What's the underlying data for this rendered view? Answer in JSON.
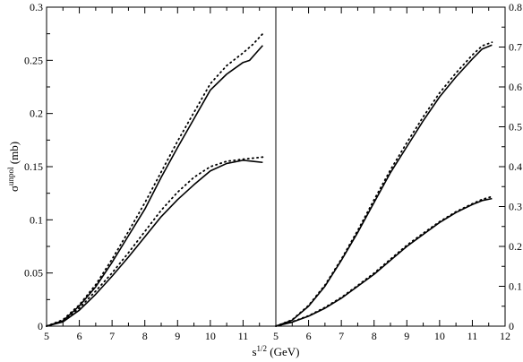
{
  "chart_data": [
    {
      "type": "line",
      "panel": "left",
      "xlabel": "s^{1/2} (GeV)",
      "ylabel": "σ^{unpol} (mb)",
      "xlim": [
        5,
        12
      ],
      "ylim": [
        0,
        0.3
      ],
      "x_ticks": [
        "5",
        "6",
        "7",
        "8",
        "9",
        "10",
        "11"
      ],
      "y_ticks": [
        "0",
        "0.05",
        "0.1",
        "0.15",
        "0.2",
        "0.25",
        "0.3"
      ],
      "series": [
        {
          "style": "solid",
          "x": [
            5.0,
            5.5,
            6.0,
            6.5,
            7.0,
            7.5,
            8.0,
            8.5,
            9.0,
            9.5,
            10.0,
            10.5,
            11.0,
            11.2,
            11.4,
            11.6
          ],
          "y": [
            0,
            0.005,
            0.019,
            0.037,
            0.06,
            0.085,
            0.11,
            0.14,
            0.168,
            0.195,
            0.222,
            0.237,
            0.248,
            0.25,
            0.257,
            0.264
          ]
        },
        {
          "style": "dotted",
          "x": [
            5.0,
            5.5,
            6.0,
            6.5,
            7.0,
            7.5,
            8.0,
            8.5,
            9.0,
            9.5,
            10.0,
            10.5,
            11.0,
            11.3,
            11.6
          ],
          "y": [
            0,
            0.006,
            0.02,
            0.039,
            0.063,
            0.089,
            0.116,
            0.145,
            0.174,
            0.201,
            0.228,
            0.245,
            0.257,
            0.265,
            0.275
          ]
        },
        {
          "style": "solid",
          "x": [
            5.0,
            5.5,
            6.0,
            6.5,
            7.0,
            7.5,
            8.0,
            8.5,
            9.0,
            9.5,
            10.0,
            10.5,
            11.0,
            11.3,
            11.6
          ],
          "y": [
            0,
            0.004,
            0.015,
            0.03,
            0.047,
            0.065,
            0.084,
            0.103,
            0.119,
            0.133,
            0.146,
            0.153,
            0.156,
            0.155,
            0.154
          ]
        },
        {
          "style": "dotted",
          "x": [
            5.0,
            5.5,
            6.0,
            6.5,
            7.0,
            7.5,
            8.0,
            8.5,
            9.0,
            9.5,
            10.0,
            10.5,
            11.0,
            11.3,
            11.6
          ],
          "y": [
            0,
            0.005,
            0.017,
            0.033,
            0.05,
            0.069,
            0.089,
            0.109,
            0.126,
            0.14,
            0.15,
            0.155,
            0.157,
            0.158,
            0.159
          ]
        }
      ]
    },
    {
      "type": "line",
      "panel": "right",
      "xlabel": "s^{1/2} (GeV)",
      "xlim": [
        5,
        12
      ],
      "ylim": [
        0,
        0.8
      ],
      "x_ticks": [
        "5",
        "6",
        "7",
        "8",
        "9",
        "10",
        "11",
        "12"
      ],
      "y_ticks": [
        "0",
        "0.1",
        "0.2",
        "0.3",
        "0.4",
        "0.5",
        "0.6",
        "0.7",
        "0.8"
      ],
      "series": [
        {
          "style": "solid",
          "x": [
            5.0,
            5.5,
            6.0,
            6.5,
            7.0,
            7.5,
            8.0,
            8.5,
            9.0,
            9.5,
            10.0,
            10.5,
            11.0,
            11.3,
            11.6
          ],
          "y": [
            0,
            0.015,
            0.05,
            0.1,
            0.165,
            0.235,
            0.31,
            0.385,
            0.45,
            0.515,
            0.575,
            0.625,
            0.67,
            0.695,
            0.705
          ]
        },
        {
          "style": "dotted",
          "x": [
            5.0,
            5.5,
            6.0,
            6.5,
            7.0,
            7.5,
            8.0,
            8.5,
            9.0,
            9.5,
            10.0,
            10.5,
            11.0,
            11.3,
            11.6
          ],
          "y": [
            0,
            0.016,
            0.052,
            0.103,
            0.168,
            0.24,
            0.317,
            0.392,
            0.46,
            0.525,
            0.585,
            0.635,
            0.68,
            0.703,
            0.712
          ]
        },
        {
          "style": "solid",
          "x": [
            5.0,
            5.5,
            6.0,
            6.5,
            7.0,
            7.5,
            8.0,
            8.5,
            9.0,
            9.5,
            10.0,
            10.5,
            11.0,
            11.3,
            11.6
          ],
          "y": [
            0,
            0.01,
            0.025,
            0.045,
            0.07,
            0.1,
            0.13,
            0.165,
            0.2,
            0.23,
            0.26,
            0.285,
            0.305,
            0.315,
            0.32
          ]
        },
        {
          "style": "dotted",
          "x": [
            5.0,
            5.5,
            6.0,
            6.5,
            7.0,
            7.5,
            8.0,
            8.5,
            9.0,
            9.5,
            10.0,
            10.5,
            11.0,
            11.3,
            11.6
          ],
          "y": [
            0,
            0.011,
            0.026,
            0.047,
            0.072,
            0.102,
            0.133,
            0.168,
            0.203,
            0.233,
            0.262,
            0.287,
            0.307,
            0.318,
            0.325
          ]
        }
      ]
    }
  ]
}
